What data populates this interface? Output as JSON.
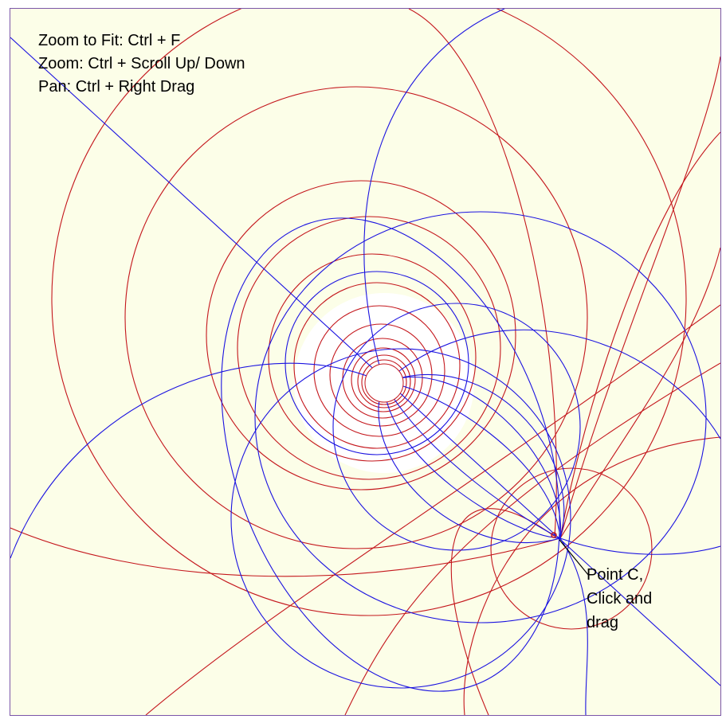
{
  "help": {
    "zoom_fit": "Zoom to Fit: Ctrl + F",
    "zoom": "Zoom: Ctrl + Scroll Up/ Down",
    "pan": "Pan: Ctrl + Right Drag"
  },
  "point_label": {
    "line1": "Point C,",
    "line2": "Click and",
    "line3": "drag"
  },
  "colors": {
    "background": "#fcfee8",
    "blue_curves": "#1a12e0",
    "red_curves": "#c4161c",
    "frame": "#7b55a8",
    "hole": "#ffffff"
  }
}
